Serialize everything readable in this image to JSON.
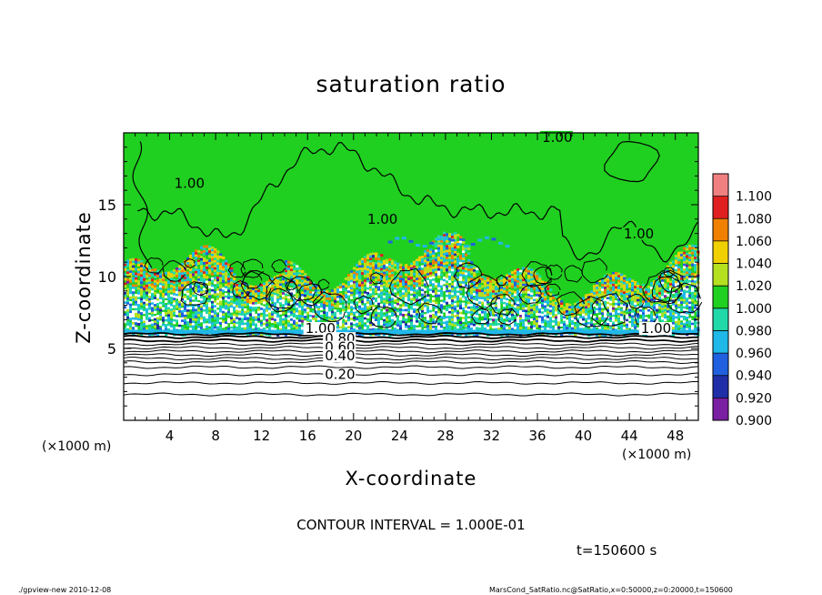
{
  "chart_data": {
    "type": "heatmap",
    "title": "saturation ratio",
    "xlabel": "X-coordinate",
    "ylabel": "Z-coordinate",
    "x_unit_label": "(×1000 m)",
    "x_range": [
      0,
      50
    ],
    "y_range": [
      0,
      20
    ],
    "x_ticks": [
      4,
      8,
      12,
      16,
      20,
      24,
      28,
      32,
      36,
      40,
      44,
      48
    ],
    "y_ticks": [
      5,
      10,
      15
    ],
    "colorbar": {
      "levels": [
        "0.900",
        "0.920",
        "0.940",
        "0.960",
        "0.980",
        "1.000",
        "1.020",
        "1.040",
        "1.060",
        "1.080",
        "1.100"
      ],
      "colors": [
        "#7a1fa2",
        "#1f2ea8",
        "#2060e0",
        "#20b8e8",
        "#20d8a8",
        "#20d020",
        "#b4e020",
        "#f0d000",
        "#f08000",
        "#e02020",
        "#f08080"
      ]
    },
    "contour_labels": [
      {
        "text": "1.00",
        "x": 36.4,
        "z": 19.5
      },
      {
        "text": "1.00",
        "x": 4.4,
        "z": 16.3
      },
      {
        "text": "1.00",
        "x": 21.2,
        "z": 13.8
      },
      {
        "text": "1.00",
        "x": 43.5,
        "z": 12.8
      },
      {
        "text": "1.00",
        "x": 15.8,
        "z": 6.2
      },
      {
        "text": "1.00",
        "x": 45.0,
        "z": 6.2
      },
      {
        "text": "0.80",
        "x": 17.5,
        "z": 5.5
      },
      {
        "text": "0.60",
        "x": 17.5,
        "z": 4.9
      },
      {
        "text": "0.40",
        "x": 17.5,
        "z": 4.3
      },
      {
        "text": "0.20",
        "x": 17.5,
        "z": 3.0
      }
    ],
    "contour_interval_text": "CONTOUR INTERVAL = 1.000E-01",
    "time_label": "t=150600 s"
  },
  "footer": {
    "left": "./gpview-new   2010-12-08",
    "right": "MarsCond_SatRatio.nc@SatRatio,x=0:50000,z=0:20000,t=150600"
  }
}
